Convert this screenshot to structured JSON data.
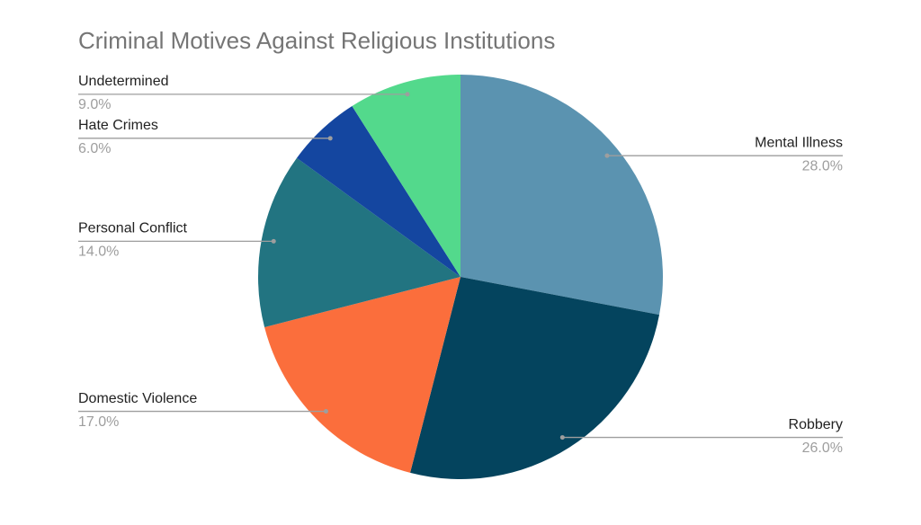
{
  "chart_data": {
    "type": "pie",
    "title": "Criminal Motives Against Religious Institutions",
    "categories": [
      "Mental Illness",
      "Robbery",
      "Domestic Violence",
      "Personal Conflict",
      "Hate Crimes",
      "Undetermined"
    ],
    "values": [
      28,
      26,
      17,
      14,
      6,
      9
    ],
    "value_labels": [
      "28.0%",
      "26.0%",
      "17.0%",
      "14.0%",
      "6.0%",
      "9.0%"
    ],
    "colors": [
      "#5b93b0",
      "#04445e",
      "#fb6e3c",
      "#227481",
      "#1446a0",
      "#53d98c"
    ]
  }
}
